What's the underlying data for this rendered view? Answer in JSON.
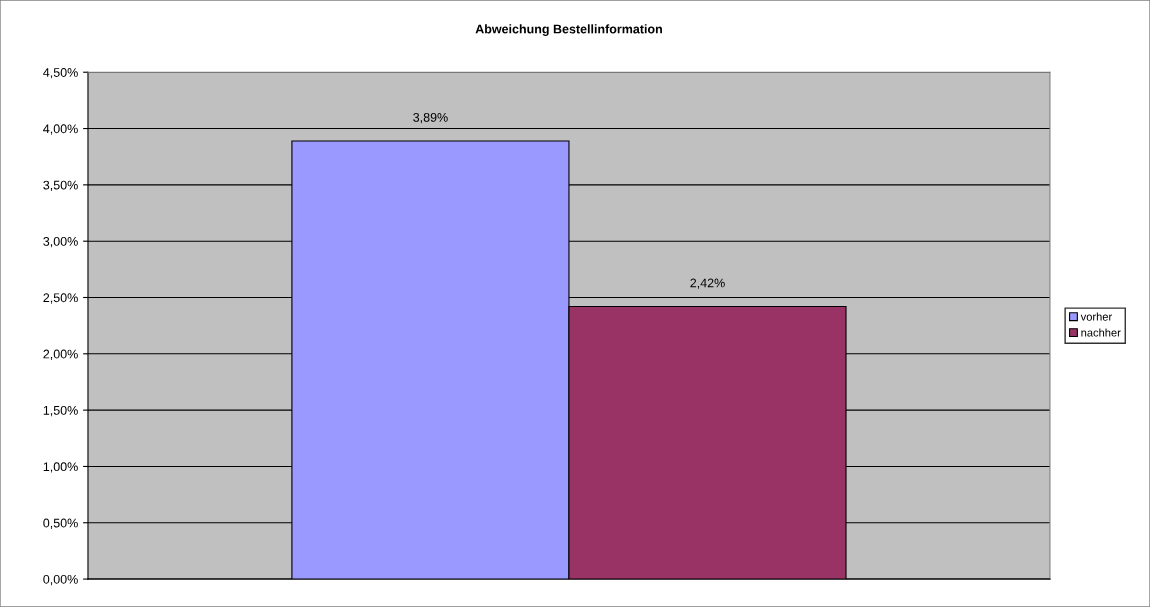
{
  "chart_data": {
    "type": "bar",
    "title": "Abweichung Bestellinformation",
    "categories": [
      null
    ],
    "series": [
      {
        "name": "vorher",
        "color": "#9999ff",
        "values": [
          3.89
        ],
        "value_labels": [
          "3,89%"
        ]
      },
      {
        "name": "nachher",
        "color": "#993366",
        "values": [
          2.42
        ],
        "value_labels": [
          "2,42%"
        ]
      }
    ],
    "ylim": [
      0,
      4.5
    ],
    "yticks": [
      {
        "value": 0,
        "label": "0,00%"
      },
      {
        "value": 0.5,
        "label": "0,50%"
      },
      {
        "value": 1,
        "label": "1,00%"
      },
      {
        "value": 1.5,
        "label": "1,50%"
      },
      {
        "value": 2,
        "label": "2,00%"
      },
      {
        "value": 2.5,
        "label": "2,50%"
      },
      {
        "value": 3,
        "label": "3,00%"
      },
      {
        "value": 3.5,
        "label": "3,50%"
      },
      {
        "value": 4,
        "label": "4,00%"
      },
      {
        "value": 4.5,
        "label": "4,50%"
      }
    ],
    "grid": "y",
    "legend": "right"
  }
}
